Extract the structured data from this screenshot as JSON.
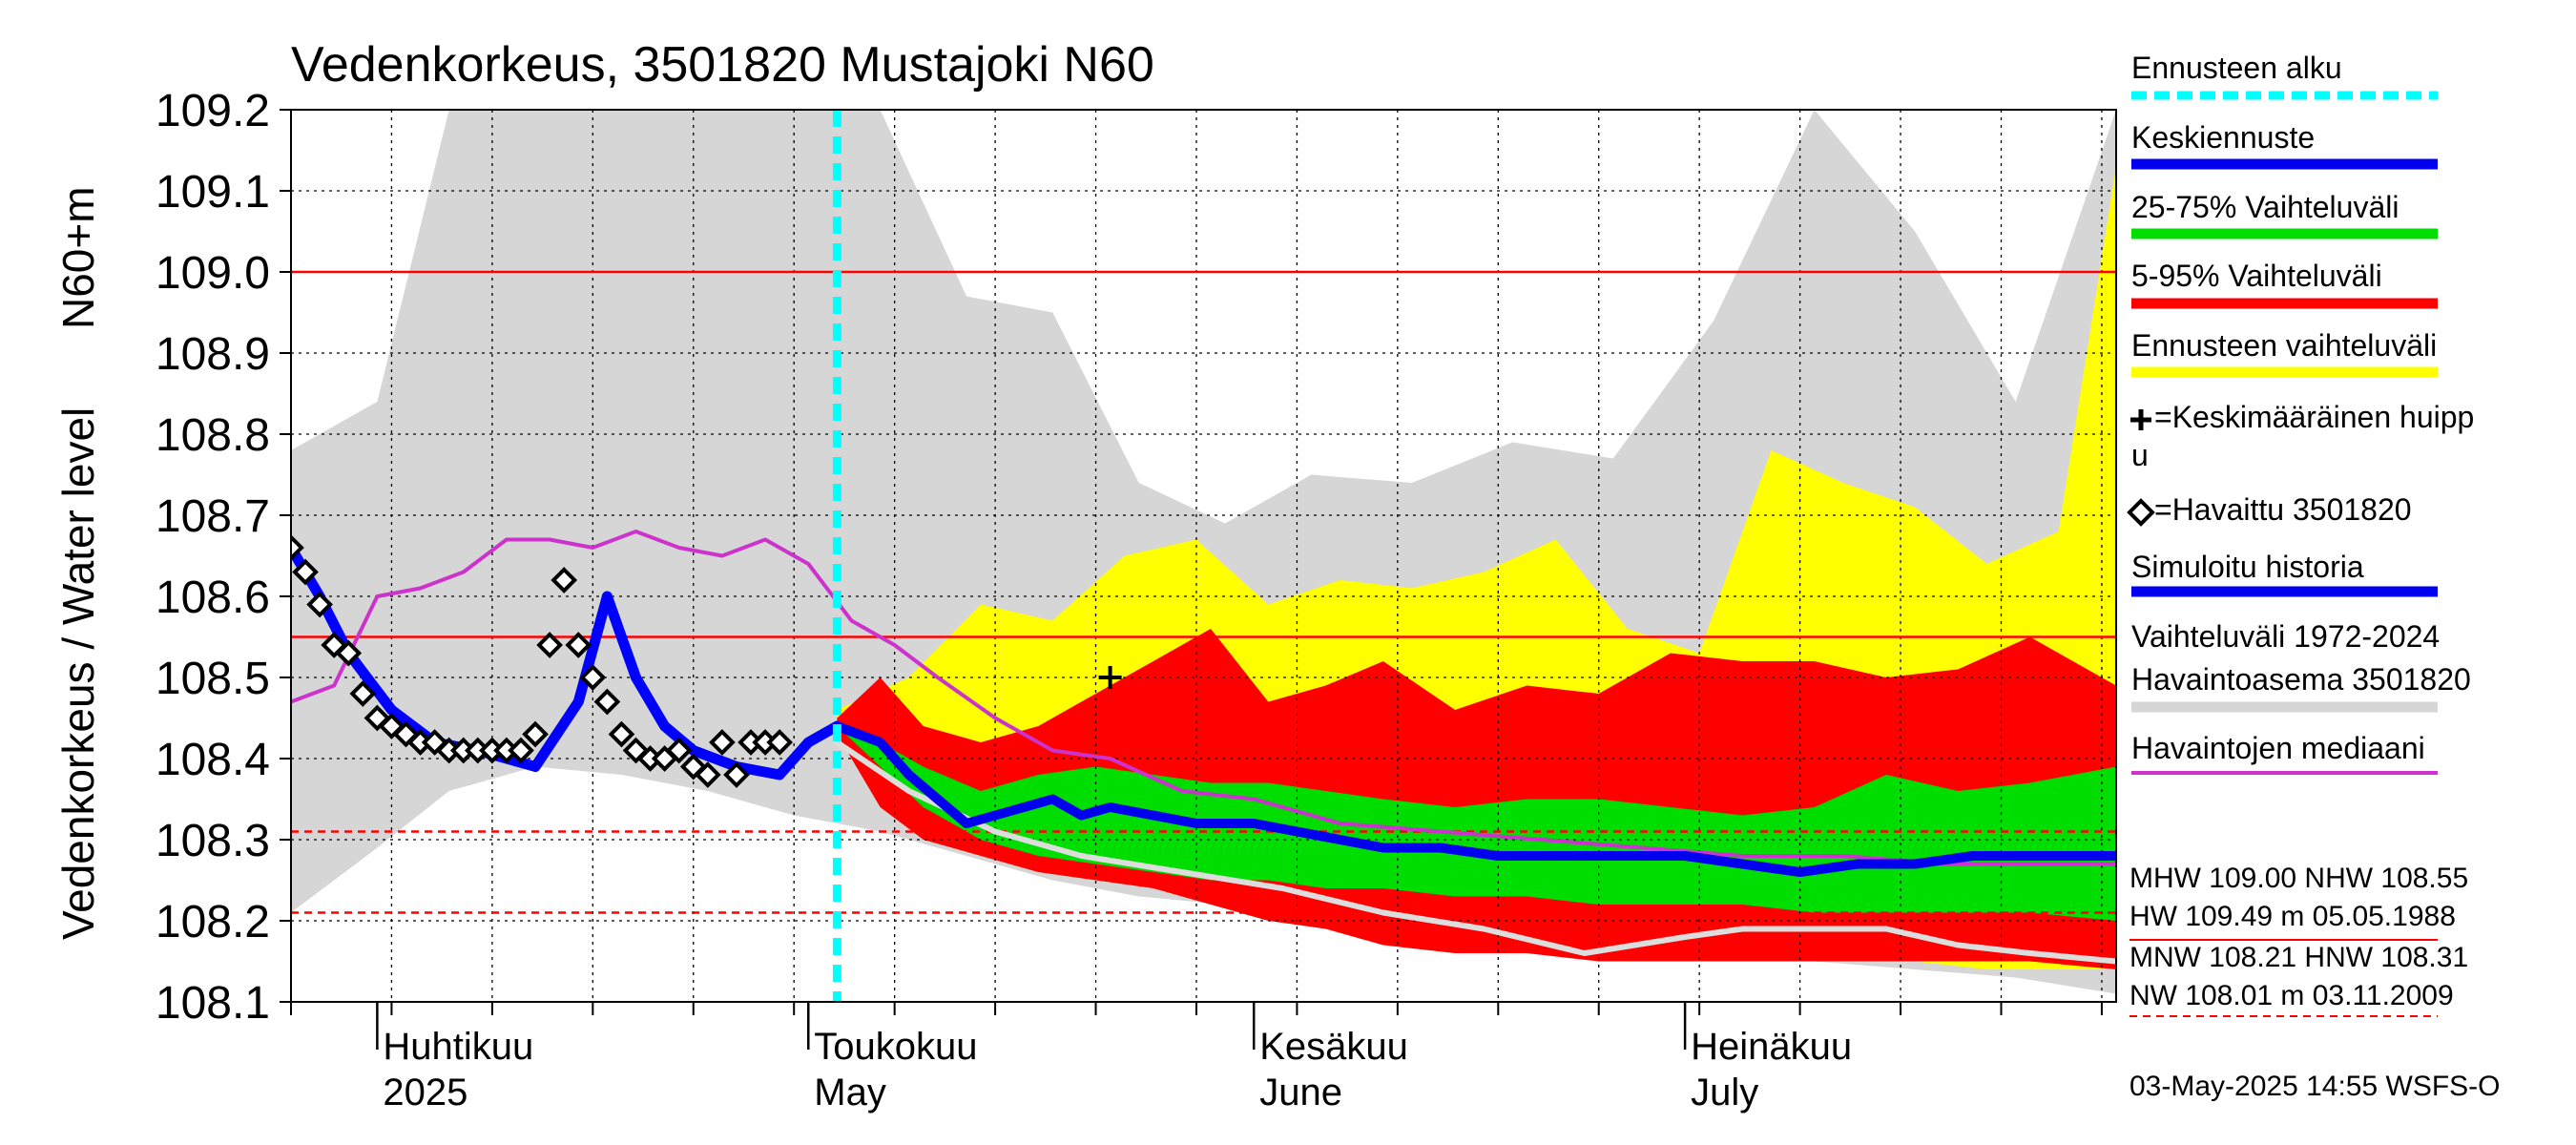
{
  "chart_data": {
    "type": "area",
    "title": "Vedenkorkeus, 3501820 Mustajoki N60",
    "ylabel_inner": "N60+m",
    "ylabel": "Vedenkorkeus / Water level",
    "ylim": [
      108.1,
      109.2
    ],
    "yticks": [
      "109.2",
      "109.1",
      "109.0",
      "108.9",
      "108.8",
      "108.7",
      "108.6",
      "108.5",
      "108.4",
      "108.3",
      "108.2",
      "108.1"
    ],
    "xrange": [
      "2025-03-26",
      "2025-07-31"
    ],
    "month_labels": [
      {
        "date": "2025-04-01",
        "fi": "Huhtikuu",
        "en": "2025"
      },
      {
        "date": "2025-05-01",
        "fi": "Toukokuu",
        "en": "May"
      },
      {
        "date": "2025-06-01",
        "fi": "Kesäkuu",
        "en": "June"
      },
      {
        "date": "2025-07-01",
        "fi": "Heinäkuu",
        "en": "July"
      }
    ],
    "grid": true,
    "legend_position": "right",
    "forecast_start": "2025-05-03",
    "reference_lines": [
      {
        "name": "MHW",
        "value": 109.0,
        "style": "solid",
        "color": "#ff0000"
      },
      {
        "name": "NHW",
        "value": 108.55,
        "style": "solid",
        "color": "#ff0000"
      },
      {
        "name": "HNW",
        "value": 108.31,
        "style": "dashed",
        "color": "#ff0000"
      },
      {
        "name": "MNW",
        "value": 108.21,
        "style": "dashed",
        "color": "#ff0000"
      }
    ],
    "series": [
      {
        "name": "Havaittu 3501820",
        "type": "markers",
        "color": "#000000",
        "x": [
          "2025-03-26",
          "2025-03-27",
          "2025-03-28",
          "2025-03-29",
          "2025-03-30",
          "2025-03-31",
          "2025-04-01",
          "2025-04-02",
          "2025-04-03",
          "2025-04-04",
          "2025-04-05",
          "2025-04-06",
          "2025-04-07",
          "2025-04-08",
          "2025-04-09",
          "2025-04-10",
          "2025-04-11",
          "2025-04-12",
          "2025-04-13",
          "2025-04-14",
          "2025-04-15",
          "2025-04-16",
          "2025-04-17",
          "2025-04-18",
          "2025-04-19",
          "2025-04-20",
          "2025-04-21",
          "2025-04-22",
          "2025-04-23",
          "2025-04-24",
          "2025-04-25",
          "2025-04-26",
          "2025-04-27",
          "2025-04-28",
          "2025-04-29"
        ],
        "y": [
          108.66,
          108.63,
          108.59,
          108.54,
          108.53,
          108.48,
          108.45,
          108.44,
          108.43,
          108.42,
          108.42,
          108.41,
          108.41,
          108.41,
          108.41,
          108.41,
          108.41,
          108.43,
          108.54,
          108.62,
          108.54,
          108.5,
          108.47,
          108.43,
          108.41,
          108.4,
          108.4,
          108.41,
          108.39,
          108.38,
          108.42,
          108.38,
          108.42,
          108.42,
          108.42
        ]
      },
      {
        "name": "Simuloitu historia",
        "type": "line",
        "color": "#0000ff",
        "x": [
          "2025-03-26",
          "2025-03-28",
          "2025-03-30",
          "2025-04-02",
          "2025-04-05",
          "2025-04-08",
          "2025-04-12",
          "2025-04-15",
          "2025-04-17",
          "2025-04-18",
          "2025-04-19",
          "2025-04-21",
          "2025-04-23",
          "2025-04-26",
          "2025-04-29",
          "2025-05-01",
          "2025-05-03"
        ],
        "y": [
          108.66,
          108.6,
          108.53,
          108.46,
          108.42,
          108.41,
          108.39,
          108.47,
          108.6,
          108.55,
          108.5,
          108.44,
          108.41,
          108.39,
          108.38,
          108.42,
          108.44
        ]
      },
      {
        "name": "Keskiennuste",
        "type": "line",
        "color": "#0000ee",
        "x": [
          "2025-05-03",
          "2025-05-06",
          "2025-05-08",
          "2025-05-10",
          "2025-05-12",
          "2025-05-14",
          "2025-05-16",
          "2025-05-18",
          "2025-05-20",
          "2025-05-22",
          "2025-05-25",
          "2025-05-28",
          "2025-06-01",
          "2025-06-04",
          "2025-06-07",
          "2025-06-10",
          "2025-06-14",
          "2025-06-18",
          "2025-06-22",
          "2025-06-26",
          "2025-07-01",
          "2025-07-05",
          "2025-07-09",
          "2025-07-13",
          "2025-07-17",
          "2025-07-21",
          "2025-07-25",
          "2025-07-31"
        ],
        "y": [
          108.44,
          108.42,
          108.38,
          108.35,
          108.32,
          108.33,
          108.34,
          108.35,
          108.33,
          108.34,
          108.33,
          108.32,
          108.32,
          108.31,
          108.3,
          108.29,
          108.29,
          108.28,
          108.28,
          108.28,
          108.28,
          108.27,
          108.26,
          108.27,
          108.27,
          108.28,
          108.28,
          108.28
        ]
      },
      {
        "name": "Havaintojen mediaani",
        "type": "line",
        "color": "#cc33cc",
        "x": [
          "2025-03-26",
          "2025-03-29",
          "2025-04-01",
          "2025-04-04",
          "2025-04-07",
          "2025-04-10",
          "2025-04-13",
          "2025-04-16",
          "2025-04-19",
          "2025-04-22",
          "2025-04-25",
          "2025-04-28",
          "2025-05-01",
          "2025-05-04",
          "2025-05-07",
          "2025-05-10",
          "2025-05-14",
          "2025-05-18",
          "2025-05-22",
          "2025-05-27",
          "2025-06-01",
          "2025-06-07",
          "2025-06-14",
          "2025-06-21",
          "2025-06-28",
          "2025-07-05",
          "2025-07-12",
          "2025-07-19",
          "2025-07-26",
          "2025-07-31"
        ],
        "y": [
          108.47,
          108.49,
          108.6,
          108.61,
          108.63,
          108.67,
          108.67,
          108.66,
          108.68,
          108.66,
          108.65,
          108.67,
          108.64,
          108.57,
          108.54,
          108.5,
          108.45,
          108.41,
          108.4,
          108.36,
          108.35,
          108.32,
          108.31,
          108.3,
          108.29,
          108.28,
          108.28,
          108.27,
          108.27,
          108.27
        ]
      },
      {
        "name": "Havaintoasema 3501820 minimum",
        "type": "line",
        "color": "#dddddd",
        "x": [
          "2025-05-03",
          "2025-05-08",
          "2025-05-14",
          "2025-05-20",
          "2025-05-27",
          "2025-06-03",
          "2025-06-10",
          "2025-06-17",
          "2025-06-24",
          "2025-07-01",
          "2025-07-05",
          "2025-07-10",
          "2025-07-15",
          "2025-07-20",
          "2025-07-25",
          "2025-07-31"
        ],
        "y": [
          108.42,
          108.36,
          108.31,
          108.28,
          108.26,
          108.24,
          108.21,
          108.19,
          108.16,
          108.18,
          108.19,
          108.19,
          108.19,
          108.17,
          108.16,
          108.15
        ]
      }
    ],
    "bands": [
      {
        "name": "Vaihteluväli 1972-2024 Havaintoasema 3501820",
        "color": "#d6d6d6",
        "x": [
          "2025-03-26",
          "2025-04-01",
          "2025-04-06",
          "2025-04-12",
          "2025-04-18",
          "2025-04-24",
          "2025-04-30",
          "2025-05-06",
          "2025-05-12",
          "2025-05-18",
          "2025-05-24",
          "2025-05-30",
          "2025-06-05",
          "2025-06-12",
          "2025-06-19",
          "2025-06-26",
          "2025-07-03",
          "2025-07-10",
          "2025-07-17",
          "2025-07-24",
          "2025-07-31"
        ],
        "low": [
          108.21,
          108.29,
          108.36,
          108.39,
          108.38,
          108.36,
          108.33,
          108.31,
          108.28,
          108.25,
          108.23,
          108.22,
          108.21,
          108.19,
          108.18,
          108.17,
          108.16,
          108.15,
          108.14,
          108.13,
          108.11
        ],
        "high": [
          108.78,
          108.84,
          109.2,
          109.2,
          109.2,
          109.2,
          109.2,
          109.2,
          108.97,
          108.95,
          108.74,
          108.69,
          108.75,
          108.74,
          108.79,
          108.77,
          108.94,
          109.2,
          109.05,
          108.84,
          109.2
        ]
      },
      {
        "name": "Ennusteen vaihteluväli",
        "color": "#ffff00",
        "x": [
          "2025-05-03",
          "2025-05-08",
          "2025-05-13",
          "2025-05-18",
          "2025-05-23",
          "2025-05-28",
          "2025-06-02",
          "2025-06-07",
          "2025-06-12",
          "2025-06-17",
          "2025-06-22",
          "2025-06-27",
          "2025-07-02",
          "2025-07-07",
          "2025-07-12",
          "2025-07-17",
          "2025-07-22",
          "2025-07-27",
          "2025-07-31"
        ],
        "low": [
          108.43,
          108.33,
          108.29,
          108.27,
          108.25,
          108.24,
          108.22,
          108.2,
          108.18,
          108.17,
          108.16,
          108.16,
          108.15,
          108.15,
          108.15,
          108.15,
          108.14,
          108.14,
          108.14
        ],
        "high": [
          108.46,
          108.5,
          108.59,
          108.57,
          108.65,
          108.67,
          108.59,
          108.62,
          108.61,
          108.63,
          108.67,
          108.56,
          108.53,
          108.78,
          108.74,
          108.71,
          108.64,
          108.68,
          109.13
        ]
      },
      {
        "name": "5-95% Vaihteluväli",
        "color": "#ff0000",
        "x": [
          "2025-05-03",
          "2025-05-06",
          "2025-05-09",
          "2025-05-13",
          "2025-05-17",
          "2025-05-21",
          "2025-05-25",
          "2025-05-29",
          "2025-06-02",
          "2025-06-06",
          "2025-06-10",
          "2025-06-15",
          "2025-06-20",
          "2025-06-25",
          "2025-06-30",
          "2025-07-05",
          "2025-07-10",
          "2025-07-15",
          "2025-07-20",
          "2025-07-25",
          "2025-07-31"
        ],
        "low": [
          108.43,
          108.34,
          108.3,
          108.28,
          108.26,
          108.25,
          108.24,
          108.22,
          108.2,
          108.19,
          108.17,
          108.16,
          108.16,
          108.15,
          108.15,
          108.15,
          108.15,
          108.15,
          108.15,
          108.15,
          108.14
        ],
        "high": [
          108.45,
          108.5,
          108.44,
          108.42,
          108.44,
          108.48,
          108.52,
          108.56,
          108.47,
          108.49,
          108.52,
          108.46,
          108.49,
          108.48,
          108.53,
          108.52,
          108.52,
          108.5,
          108.51,
          108.55,
          108.49
        ]
      },
      {
        "name": "25-75% Vaihteluväli",
        "color": "#00dd00",
        "x": [
          "2025-05-03",
          "2025-05-06",
          "2025-05-09",
          "2025-05-13",
          "2025-05-17",
          "2025-05-21",
          "2025-05-25",
          "2025-05-29",
          "2025-06-02",
          "2025-06-06",
          "2025-06-10",
          "2025-06-15",
          "2025-06-20",
          "2025-06-25",
          "2025-06-30",
          "2025-07-05",
          "2025-07-10",
          "2025-07-15",
          "2025-07-20",
          "2025-07-25",
          "2025-07-31"
        ],
        "low": [
          108.44,
          108.39,
          108.34,
          108.3,
          108.28,
          108.27,
          108.26,
          108.25,
          108.25,
          108.24,
          108.24,
          108.23,
          108.23,
          108.22,
          108.22,
          108.22,
          108.21,
          108.21,
          108.21,
          108.21,
          108.2
        ],
        "high": [
          108.44,
          108.42,
          108.39,
          108.36,
          108.38,
          108.39,
          108.38,
          108.37,
          108.37,
          108.36,
          108.35,
          108.34,
          108.35,
          108.35,
          108.34,
          108.33,
          108.34,
          108.38,
          108.36,
          108.37,
          108.39
        ]
      }
    ],
    "mean_peak": {
      "name": "Keskimääräinen huippu",
      "x": "2025-05-22",
      "y": 108.5
    },
    "legend": [
      {
        "label": "Ennusteen alku",
        "kind": "dash",
        "color": "#00ffff"
      },
      {
        "label": "Keskiennuste",
        "kind": "line",
        "color": "#0000ee"
      },
      {
        "label": "25-75% Vaihteluväli",
        "kind": "line",
        "color": "#00dd00"
      },
      {
        "label": "5-95% Vaihteluväli",
        "kind": "line",
        "color": "#ff0000"
      },
      {
        "label": "Ennusteen vaihteluväli",
        "kind": "line",
        "color": "#ffff00"
      },
      {
        "label": "=Keskimääräinen huipp",
        "label2": "u",
        "kind": "plus",
        "color": "#000000"
      },
      {
        "label": "=Havaittu 3501820",
        "kind": "diamond",
        "color": "#000000"
      },
      {
        "label": "Simuloitu historia",
        "kind": "line",
        "color": "#0000ee"
      },
      {
        "label": "Vaihteluväli 1972-2024",
        "label2": " Havaintoasema 3501820",
        "kind": "line",
        "color": "#d6d6d6"
      },
      {
        "label": "Havaintojen mediaani",
        "kind": "line",
        "color": "#cc33cc"
      }
    ],
    "stats": {
      "line1": "MHW 109.00 NHW 108.55",
      "line2": "HW 109.49 m 05.05.1988",
      "line3": "MNW 108.21 HNW 108.31",
      "line4": "NW 108.01 m 03.11.2009"
    },
    "footer": "03-May-2025 14:55 WSFS-O",
    "colors": {
      "grid": "#000000",
      "forecast_start": "#00ffff",
      "reference": "#ff0000"
    }
  }
}
